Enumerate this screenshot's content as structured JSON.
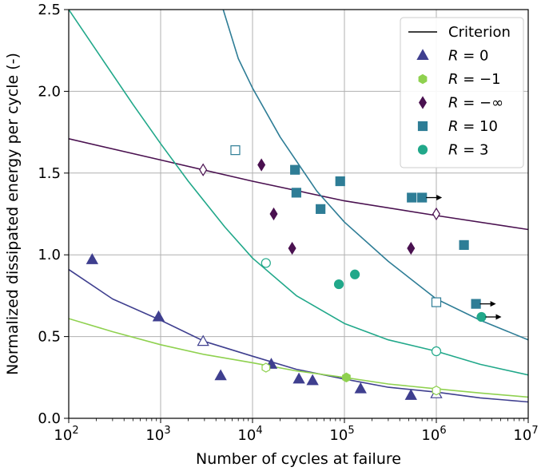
{
  "chart_data": {
    "type": "scatter",
    "title": "",
    "xlabel": "Number of cycles at failure",
    "ylabel": "Normalized dissipated energy per cycle (-)",
    "xscale": "log",
    "xlim": [
      100,
      10000000
    ],
    "ylim": [
      0,
      2.5
    ],
    "x_ticks": [
      {
        "value": 100,
        "base": "10",
        "exp": "2"
      },
      {
        "value": 1000,
        "base": "10",
        "exp": "3"
      },
      {
        "value": 10000,
        "base": "10",
        "exp": "4"
      },
      {
        "value": 100000,
        "base": "10",
        "exp": "5"
      },
      {
        "value": 1000000,
        "base": "10",
        "exp": "6"
      },
      {
        "value": 10000000,
        "base": "10",
        "exp": "7"
      }
    ],
    "y_ticks": [
      {
        "value": 0,
        "label": "0.0"
      },
      {
        "value": 0.5,
        "label": "0.5"
      },
      {
        "value": 1,
        "label": "1.0"
      },
      {
        "value": 1.5,
        "label": "1.5"
      },
      {
        "value": 2,
        "label": "2.0"
      },
      {
        "value": 2.5,
        "label": "2.5"
      }
    ],
    "grid": true,
    "legend_position": "top-right",
    "legend": {
      "criterion_label": "Criterion",
      "criterion_color": "#000000",
      "entries": [
        {
          "var": "R",
          "rest": " = 0",
          "marker": "triangle",
          "color": "#3f3f8f"
        },
        {
          "var": "R",
          "rest": " = −1",
          "marker": "hexagon",
          "color": "#8fd14f"
        },
        {
          "var": "R",
          "rest": " = −∞",
          "marker": "diamond",
          "color": "#4a1150"
        },
        {
          "var": "R",
          "rest": " = 10",
          "marker": "square",
          "color": "#2e7d96"
        },
        {
          "var": "R",
          "rest": " = 3",
          "marker": "circle",
          "color": "#21a88a"
        }
      ]
    },
    "curves": [
      {
        "name": "R = −∞ criterion",
        "color": "#4a1150",
        "points": [
          [
            100,
            1.71
          ],
          [
            1000,
            1.58
          ],
          [
            10000,
            1.45
          ],
          [
            100000,
            1.33
          ],
          [
            1000000,
            1.24
          ],
          [
            10000000,
            1.155
          ]
        ]
      },
      {
        "name": "R = 10 criterion",
        "color": "#2e7d96",
        "points": [
          [
            4800,
            2.5
          ],
          [
            7000,
            2.2
          ],
          [
            10000,
            2.02
          ],
          [
            20000,
            1.72
          ],
          [
            50000,
            1.39
          ],
          [
            100000,
            1.2
          ],
          [
            300000,
            0.96
          ],
          [
            1000000,
            0.73
          ],
          [
            3000000,
            0.6
          ],
          [
            10000000,
            0.48
          ]
        ]
      },
      {
        "name": "R = 3 criterion",
        "color": "#21a88a",
        "points": [
          [
            100,
            2.5
          ],
          [
            200,
            2.25
          ],
          [
            500,
            1.92
          ],
          [
            1000,
            1.68
          ],
          [
            2000,
            1.45
          ],
          [
            5000,
            1.17
          ],
          [
            10000,
            0.98
          ],
          [
            30000,
            0.75
          ],
          [
            100000,
            0.58
          ],
          [
            300000,
            0.48
          ],
          [
            1000000,
            0.41
          ],
          [
            3000000,
            0.33
          ],
          [
            10000000,
            0.265
          ]
        ]
      },
      {
        "name": "R = 0 criterion",
        "color": "#3f3f8f",
        "points": [
          [
            100,
            0.91
          ],
          [
            300,
            0.73
          ],
          [
            1000,
            0.6
          ],
          [
            3000,
            0.47
          ],
          [
            10000,
            0.38
          ],
          [
            30000,
            0.3
          ],
          [
            100000,
            0.24
          ],
          [
            300000,
            0.19
          ],
          [
            1000000,
            0.16
          ],
          [
            3000000,
            0.125
          ],
          [
            10000000,
            0.1
          ]
        ]
      },
      {
        "name": "R = -1 criterion",
        "color": "#8fd14f",
        "points": [
          [
            100,
            0.61
          ],
          [
            300,
            0.53
          ],
          [
            1000,
            0.45
          ],
          [
            3000,
            0.39
          ],
          [
            10000,
            0.34
          ],
          [
            30000,
            0.29
          ],
          [
            100000,
            0.25
          ],
          [
            300000,
            0.21
          ],
          [
            1000000,
            0.18
          ],
          [
            3000000,
            0.155
          ],
          [
            10000000,
            0.13
          ]
        ]
      }
    ],
    "series": [
      {
        "label": "R = 0",
        "marker": "triangle",
        "color": "#3f3f8f",
        "points": [
          [
            180,
            0.97,
            true
          ],
          [
            950,
            0.62,
            true
          ],
          [
            2900,
            0.47,
            false
          ],
          [
            4500,
            0.26,
            true
          ],
          [
            16000,
            0.33,
            true
          ],
          [
            32000,
            0.24,
            true
          ],
          [
            45000,
            0.23,
            true
          ],
          [
            150000,
            0.18,
            true
          ],
          [
            530000,
            0.14,
            true
          ],
          [
            1000000,
            0.15,
            false
          ]
        ]
      },
      {
        "label": "R = -1",
        "marker": "hexagon",
        "color": "#8fd14f",
        "points": [
          [
            14000,
            0.31,
            false
          ],
          [
            105000,
            0.25,
            true
          ],
          [
            1000000,
            0.17,
            false
          ]
        ]
      },
      {
        "label": "R = -inf",
        "marker": "diamond",
        "color": "#4a1150",
        "points": [
          [
            2900,
            1.52,
            false
          ],
          [
            12500,
            1.55,
            true
          ],
          [
            17000,
            1.25,
            true
          ],
          [
            27000,
            1.04,
            true
          ],
          [
            530000,
            1.04,
            true
          ],
          [
            1000000,
            1.25,
            false
          ]
        ]
      },
      {
        "label": "R = 10",
        "marker": "square",
        "color": "#2e7d96",
        "points": [
          [
            6500,
            1.64,
            false
          ],
          [
            29000,
            1.52,
            true
          ],
          [
            30000,
            1.38,
            true
          ],
          [
            55000,
            1.28,
            true
          ],
          [
            90000,
            1.45,
            true
          ],
          [
            540000,
            1.35,
            true
          ],
          [
            700000,
            1.35,
            true
          ],
          [
            1000000,
            0.71,
            false
          ],
          [
            2000000,
            1.06,
            true
          ],
          [
            2700000,
            0.7,
            true
          ]
        ]
      },
      {
        "label": "R = 3",
        "marker": "circle",
        "color": "#21a88a",
        "points": [
          [
            14000,
            0.95,
            false
          ],
          [
            87000,
            0.82,
            true
          ],
          [
            130000,
            0.88,
            true
          ],
          [
            1000000,
            0.41,
            false
          ],
          [
            3100000,
            0.62,
            true
          ]
        ]
      }
    ],
    "runouts": [
      [
        700000,
        1.35
      ],
      [
        2700000,
        0.7
      ],
      [
        3100000,
        0.62
      ]
    ]
  }
}
